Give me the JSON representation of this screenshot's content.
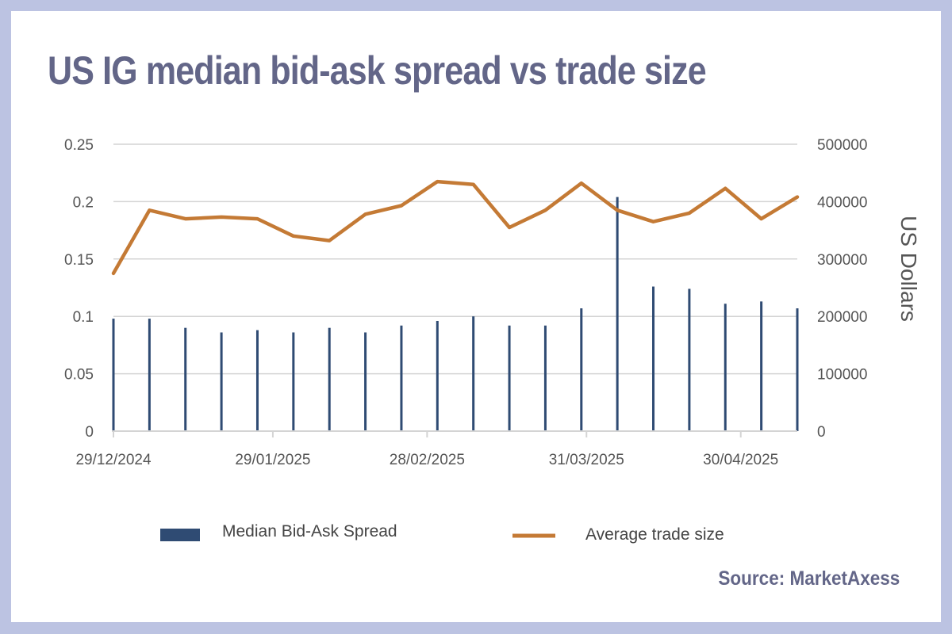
{
  "source": "Source: MarketAxess",
  "colors": {
    "bars": "#2f4b73",
    "line": "#c47a35",
    "grid": "#d4d4d4",
    "text": "#555555",
    "title": "#636688",
    "frame": "#bcc3e2"
  },
  "chart_data": {
    "type": "bar+line",
    "title": "US IG median bid-ask spread vs trade size",
    "x_tick_labels": [
      "29/12/2024",
      "29/01/2025",
      "28/02/2025",
      "31/03/2025",
      "30/04/2025"
    ],
    "x_ticks": [
      "2024-12-29",
      "2025-01-29",
      "2025-02-28",
      "2025-03-31",
      "2025-04-30"
    ],
    "x": [
      "2024-12-29",
      "2025-01-05",
      "2025-01-12",
      "2025-01-19",
      "2025-01-26",
      "2025-02-02",
      "2025-02-09",
      "2025-02-16",
      "2025-02-23",
      "2025-03-02",
      "2025-03-09",
      "2025-03-16",
      "2025-03-23",
      "2025-03-30",
      "2025-04-06",
      "2025-04-13",
      "2025-04-20",
      "2025-04-27",
      "2025-05-04",
      "2025-05-11"
    ],
    "y_left": {
      "label": "",
      "min": 0,
      "max": 0.25,
      "ticks": [
        "0",
        "0.05",
        "0.1",
        "0.15",
        "0.2",
        "0.25"
      ]
    },
    "y_right": {
      "label": "US Dollars",
      "min": 0,
      "max": 500000,
      "ticks": [
        "0",
        "100000",
        "200000",
        "300000",
        "400000",
        "500000"
      ]
    },
    "grid": "horizontal",
    "legend_position": "bottom",
    "series": [
      {
        "name": "Median Bid-Ask Spread",
        "type": "bar",
        "axis": "left",
        "values": [
          0.098,
          0.098,
          0.09,
          0.086,
          0.088,
          0.086,
          0.09,
          0.086,
          0.092,
          0.096,
          0.1,
          0.092,
          0.092,
          0.107,
          0.204,
          0.126,
          0.124,
          0.111,
          0.113,
          0.107
        ]
      },
      {
        "name": "Average trade size",
        "type": "line",
        "axis": "right",
        "values": [
          275000,
          385000,
          370000,
          373000,
          370000,
          340000,
          332000,
          378000,
          393000,
          435000,
          430000,
          355000,
          385000,
          432000,
          385000,
          365000,
          380000,
          423000,
          370000,
          408000
        ]
      }
    ]
  }
}
